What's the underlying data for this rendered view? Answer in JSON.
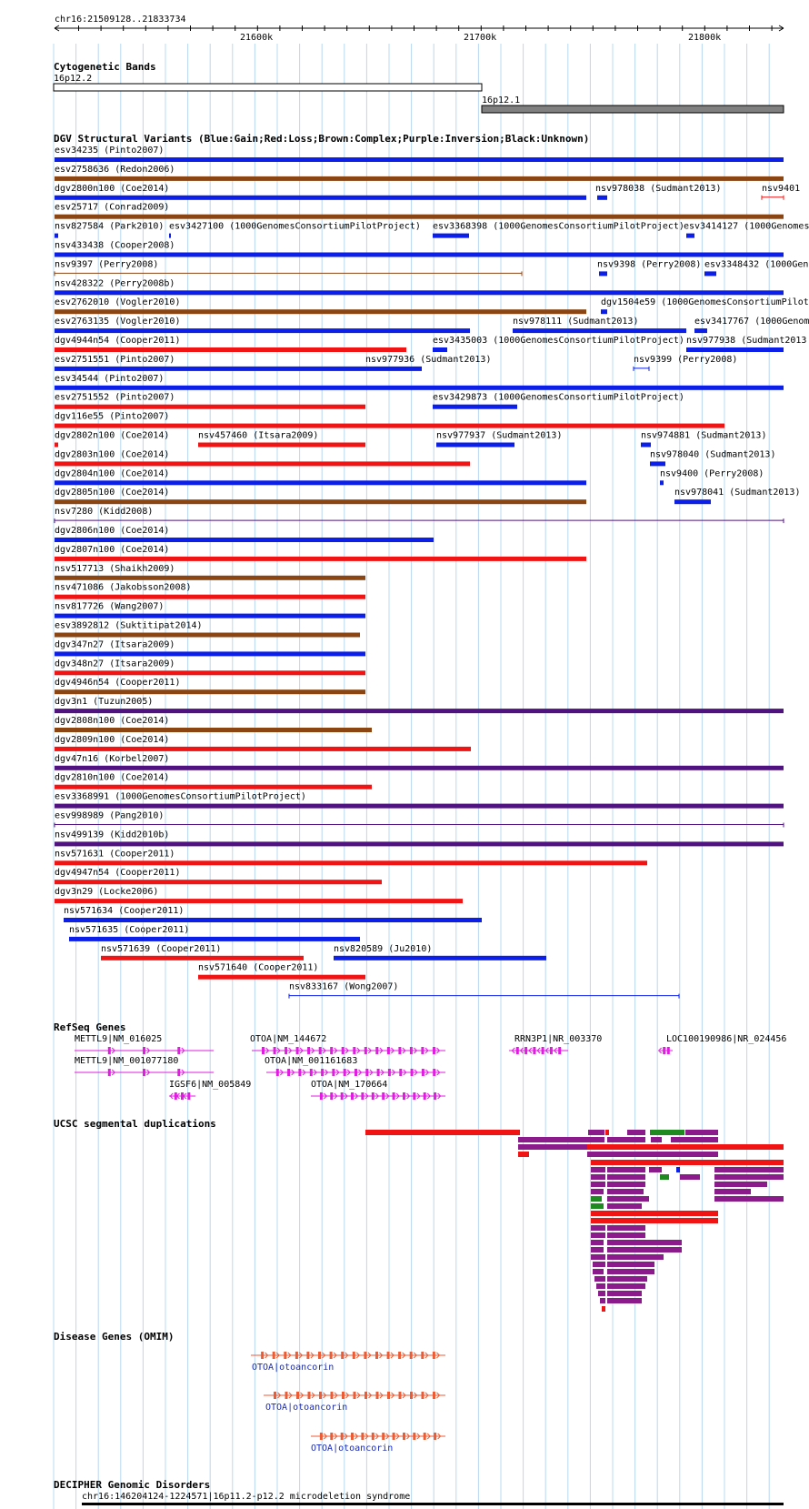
{
  "colors": {
    "gain": "#0b1fe8",
    "loss": "#f11414",
    "complex": "#8b4513",
    "inversion": "#4f1280",
    "unknown": "#000000",
    "gene": "#e11ce1",
    "omim_gene": "#ec5c34",
    "omim_label": "#1a2bb5",
    "segdup_red": "#f11414",
    "segdup_purple": "#8b1a8b",
    "segdup_green": "#1f8a1f",
    "segdup_blue": "#0b1fe8",
    "grid": "#b8d8f0",
    "band_gpos": "#808080"
  },
  "ruler": {
    "position": "chr16:21509128..21833734",
    "ticks": [
      "21600k",
      "21700k",
      "21800k"
    ]
  },
  "cytoband": {
    "title": "Cytogenetic Bands",
    "bands": [
      "16p12.2",
      "16p12.1"
    ]
  },
  "dgv": {
    "title": "DGV Structural Variants (Blue:Gain;Red:Loss;Brown:Complex;Purple:Inversion;Black:Unknown)",
    "items": [
      {
        "row": 0,
        "label": "esv34235 (Pinto2007)",
        "type": "gain"
      },
      {
        "row": 1,
        "label": "esv2758636 (Redon2006)",
        "type": "complex"
      },
      {
        "row": 2,
        "label": "dgv2800n100 (Coe2014)",
        "type": "gain"
      },
      {
        "row": 2,
        "label": "nsv978038 (Sudmant2013)",
        "type": "gain"
      },
      {
        "row": 2,
        "label": "nsv9401",
        "type": "loss"
      },
      {
        "row": 3,
        "label": "esv25717 (Conrad2009)",
        "type": "complex"
      },
      {
        "row": 4,
        "label": "nsv827584 (Park2010)",
        "type": "gain"
      },
      {
        "row": 4,
        "label": "esv3427100 (1000GenomesConsortiumPilotProject)",
        "type": "gain"
      },
      {
        "row": 4,
        "label": "esv3368398 (1000GenomesConsortiumPilotProject)",
        "type": "gain"
      },
      {
        "row": 4,
        "label": "esv3414127 (1000Genomes",
        "type": "gain"
      },
      {
        "row": 5,
        "label": "nsv433438 (Cooper2008)",
        "type": "gain"
      },
      {
        "row": 6,
        "label": "nsv9397 (Perry2008)",
        "type": "complex"
      },
      {
        "row": 6,
        "label": "nsv9398 (Perry2008)",
        "type": "gain"
      },
      {
        "row": 6,
        "label": "esv3348432 (1000Gen",
        "type": "gain"
      },
      {
        "row": 7,
        "label": "nsv428322 (Perry2008b)",
        "type": "gain"
      },
      {
        "row": 8,
        "label": "esv2762010 (Vogler2010)",
        "type": "complex"
      },
      {
        "row": 8,
        "label": "dgv1504e59 (1000GenomesConsortiumPilot",
        "type": "gain"
      },
      {
        "row": 9,
        "label": "esv2763135 (Vogler2010)",
        "type": "gain"
      },
      {
        "row": 9,
        "label": "nsv978111 (Sudmant2013)",
        "type": "gain"
      },
      {
        "row": 9,
        "label": "esv3417767 (1000Genom",
        "type": "gain"
      },
      {
        "row": 10,
        "label": "dgv4944n54 (Cooper2011)",
        "type": "loss"
      },
      {
        "row": 10,
        "label": "esv3435003 (1000GenomesConsortiumPilotProject)",
        "type": "gain"
      },
      {
        "row": 10,
        "label": "nsv977938 (Sudmant2013",
        "type": "gain"
      },
      {
        "row": 11,
        "label": "esv2751551 (Pinto2007)",
        "type": "gain"
      },
      {
        "row": 11,
        "label": "nsv977936 (Sudmant2013)",
        "type": "gain"
      },
      {
        "row": 11,
        "label": "nsv9399 (Perry2008)",
        "type": "gain"
      },
      {
        "row": 12,
        "label": "esv34544 (Pinto2007)",
        "type": "gain"
      },
      {
        "row": 13,
        "label": "esv2751552 (Pinto2007)",
        "type": "loss"
      },
      {
        "row": 13,
        "label": "esv3429873 (1000GenomesConsortiumPilotProject)",
        "type": "gain"
      },
      {
        "row": 14,
        "label": "dgv116e55 (Pinto2007)",
        "type": "loss"
      },
      {
        "row": 15,
        "label": "dgv2802n100 (Coe2014)",
        "type": "loss"
      },
      {
        "row": 15,
        "label": "nsv457460 (Itsara2009)",
        "type": "loss"
      },
      {
        "row": 15,
        "label": "nsv977937 (Sudmant2013)",
        "type": "gain"
      },
      {
        "row": 15,
        "label": "nsv974881 (Sudmant2013)",
        "type": "gain"
      },
      {
        "row": 16,
        "label": "dgv2803n100 (Coe2014)",
        "type": "loss"
      },
      {
        "row": 16,
        "label": "nsv978040 (Sudmant2013)",
        "type": "gain"
      },
      {
        "row": 17,
        "label": "dgv2804n100 (Coe2014)",
        "type": "gain"
      },
      {
        "row": 17,
        "label": "nsv9400 (Perry2008)",
        "type": "gain"
      },
      {
        "row": 18,
        "label": "dgv2805n100 (Coe2014)",
        "type": "complex"
      },
      {
        "row": 18,
        "label": "nsv978041 (Sudmant2013)",
        "type": "gain"
      },
      {
        "row": 19,
        "label": "nsv7280 (Kidd2008)",
        "type": "inversion"
      },
      {
        "row": 20,
        "label": "dgv2806n100 (Coe2014)",
        "type": "gain"
      },
      {
        "row": 21,
        "label": "dgv2807n100 (Coe2014)",
        "type": "loss"
      },
      {
        "row": 22,
        "label": "nsv517713 (Shaikh2009)",
        "type": "complex"
      },
      {
        "row": 23,
        "label": "nsv471086 (Jakobsson2008)",
        "type": "loss"
      },
      {
        "row": 24,
        "label": "nsv817726 (Wang2007)",
        "type": "gain"
      },
      {
        "row": 25,
        "label": "esv3892812 (Suktitipat2014)",
        "type": "complex"
      },
      {
        "row": 26,
        "label": "dgv347n27 (Itsara2009)",
        "type": "gain"
      },
      {
        "row": 27,
        "label": "dgv348n27 (Itsara2009)",
        "type": "loss"
      },
      {
        "row": 28,
        "label": "dgv4946n54 (Cooper2011)",
        "type": "complex"
      },
      {
        "row": 29,
        "label": "dgv3n1 (Tuzun2005)",
        "type": "inversion"
      },
      {
        "row": 30,
        "label": "dgv2808n100 (Coe2014)",
        "type": "complex"
      },
      {
        "row": 31,
        "label": "dgv2809n100 (Coe2014)",
        "type": "loss"
      },
      {
        "row": 32,
        "label": "dgv47n16 (Korbel2007)",
        "type": "inversion"
      },
      {
        "row": 33,
        "label": "dgv2810n100 (Coe2014)",
        "type": "loss"
      },
      {
        "row": 34,
        "label": "esv3368991 (1000GenomesConsortiumPilotProject)",
        "type": "inversion"
      },
      {
        "row": 35,
        "label": "esv998989 (Pang2010)",
        "type": "inversion"
      },
      {
        "row": 36,
        "label": "nsv499139 (Kidd2010b)",
        "type": "inversion"
      },
      {
        "row": 37,
        "label": "nsv571631 (Cooper2011)",
        "type": "loss"
      },
      {
        "row": 38,
        "label": "dgv4947n54 (Cooper2011)",
        "type": "loss"
      },
      {
        "row": 39,
        "label": "dgv3n29 (Locke2006)",
        "type": "loss"
      },
      {
        "row": 40,
        "label": "nsv571634 (Cooper2011)",
        "type": "gain"
      },
      {
        "row": 41,
        "label": "nsv571635 (Cooper2011)",
        "type": "gain"
      },
      {
        "row": 42,
        "label": "nsv571639 (Cooper2011)",
        "type": "loss"
      },
      {
        "row": 42,
        "label": "nsv820589 (Ju2010)",
        "type": "gain"
      },
      {
        "row": 43,
        "label": "nsv571640 (Cooper2011)",
        "type": "loss"
      },
      {
        "row": 44,
        "label": "nsv833167 (Wong2007)",
        "type": "gain"
      }
    ]
  },
  "refseq": {
    "title": "RefSeq Genes",
    "genes": [
      {
        "label": "METTL9|NM_016025",
        "strand": "+"
      },
      {
        "label": "METTL9|NM_001077180",
        "strand": "+"
      },
      {
        "label": "IGSF6|NM_005849",
        "strand": "-"
      },
      {
        "label": "OTOA|NM_144672",
        "strand": "+"
      },
      {
        "label": "OTOA|NM_001161683",
        "strand": "+"
      },
      {
        "label": "OTOA|NM_170664",
        "strand": "+"
      },
      {
        "label": "RRN3P1|NR_003370",
        "strand": "-"
      },
      {
        "label": "LOC100190986|NR_024456",
        "strand": "-"
      }
    ]
  },
  "segdup": {
    "title": "UCSC segmental duplications"
  },
  "omim": {
    "title": "Disease Genes (OMIM)",
    "genes": [
      {
        "label": "OTOA|otoancorin"
      },
      {
        "label": "OTOA|otoancorin"
      },
      {
        "label": "OTOA|otoancorin"
      }
    ]
  },
  "decipher": {
    "title": "DECIPHER Genomic Disorders",
    "items": [
      {
        "label": "chr16:146204124-1224571|16p11.2-p12.2 microdeletion syndrome"
      }
    ]
  }
}
